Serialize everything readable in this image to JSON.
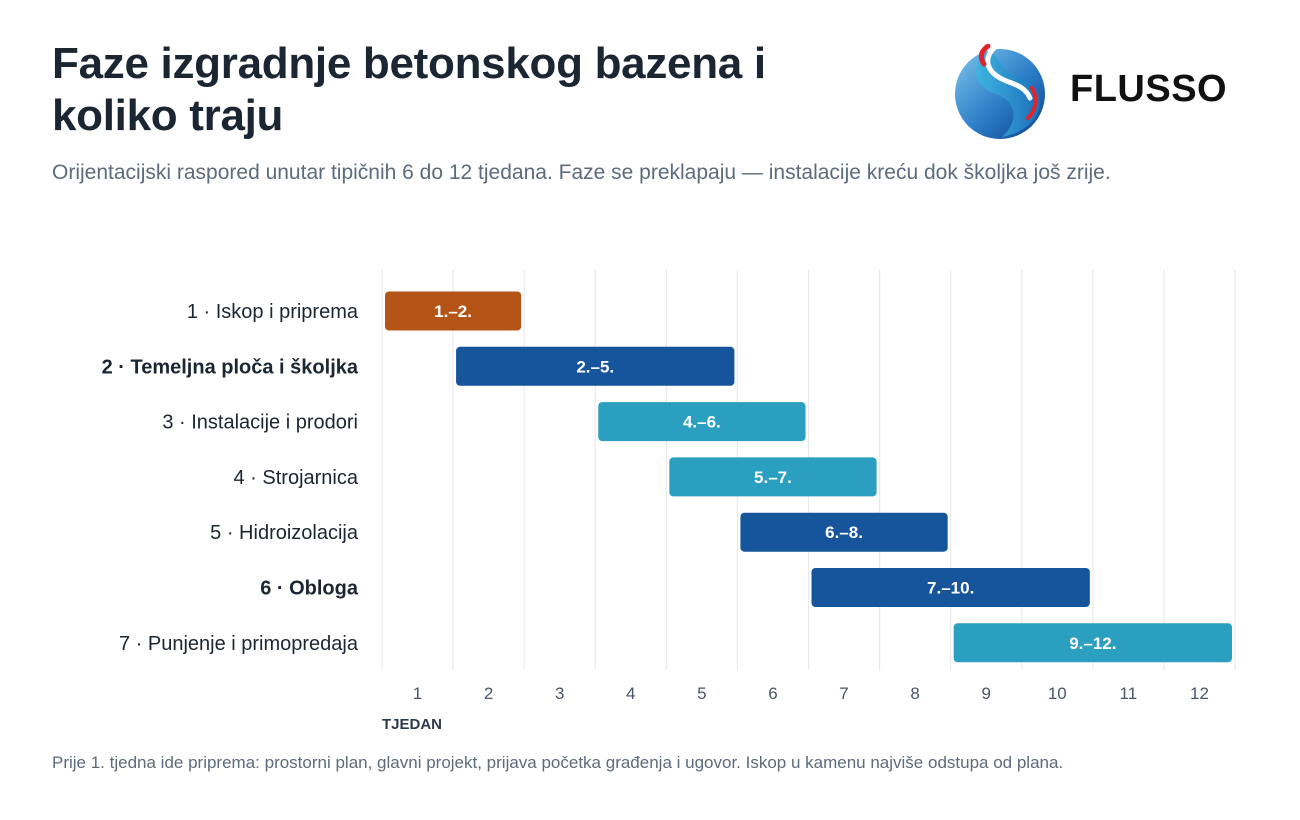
{
  "header": {
    "title": "Faze izgradnje betonskog bazena i koliko traju",
    "subtitle": "Orijentacijski raspored unutar tipičnih 6 do 12 tjedana. Faze se preklapaju — instalacije kreću dok školjka još zrije."
  },
  "logo": {
    "text": "FLUSSO",
    "icon": "flusso-swirl-icon"
  },
  "footnote": "Prije 1. tjedna ide priprema: prostorni plan, glavni projekt, prijava početka građenja i ugovor. Iskop u kamenu najviše odstupa od plana.",
  "colors": {
    "orange": "#b45517",
    "dark_blue": "#16549c",
    "teal": "#2b9fbf",
    "grid": "#e6eaf0",
    "label": "#1c2633",
    "tick": "#4a5668"
  },
  "chart_data": {
    "type": "gantt",
    "xlabel": "TJEDAN",
    "x_ticks": [
      1,
      2,
      3,
      4,
      5,
      6,
      7,
      8,
      9,
      10,
      11,
      12
    ],
    "xlim": [
      0.5,
      12.5
    ],
    "grid": true,
    "tasks": [
      {
        "label": "1 · Iskop i priprema",
        "start": 1,
        "end": 2,
        "bar_label": "1.–2.",
        "color": "orange",
        "bold": false
      },
      {
        "label": "2 · Temeljna ploča i školjka",
        "start": 2,
        "end": 5,
        "bar_label": "2.–5.",
        "color": "dark_blue",
        "bold": true
      },
      {
        "label": "3 · Instalacije i prodori",
        "start": 4,
        "end": 6,
        "bar_label": "4.–6.",
        "color": "teal",
        "bold": false
      },
      {
        "label": "4 · Strojarnica",
        "start": 5,
        "end": 7,
        "bar_label": "5.–7.",
        "color": "teal",
        "bold": false
      },
      {
        "label": "5 · Hidroizolacija",
        "start": 6,
        "end": 8,
        "bar_label": "6.–8.",
        "color": "dark_blue",
        "bold": false
      },
      {
        "label": "6 · Obloga",
        "start": 7,
        "end": 10,
        "bar_label": "7.–10.",
        "color": "dark_blue",
        "bold": true
      },
      {
        "label": "7 · Punjenje i primopredaja",
        "start": 9,
        "end": 12,
        "bar_label": "9.–12.",
        "color": "teal",
        "bold": false
      }
    ]
  }
}
